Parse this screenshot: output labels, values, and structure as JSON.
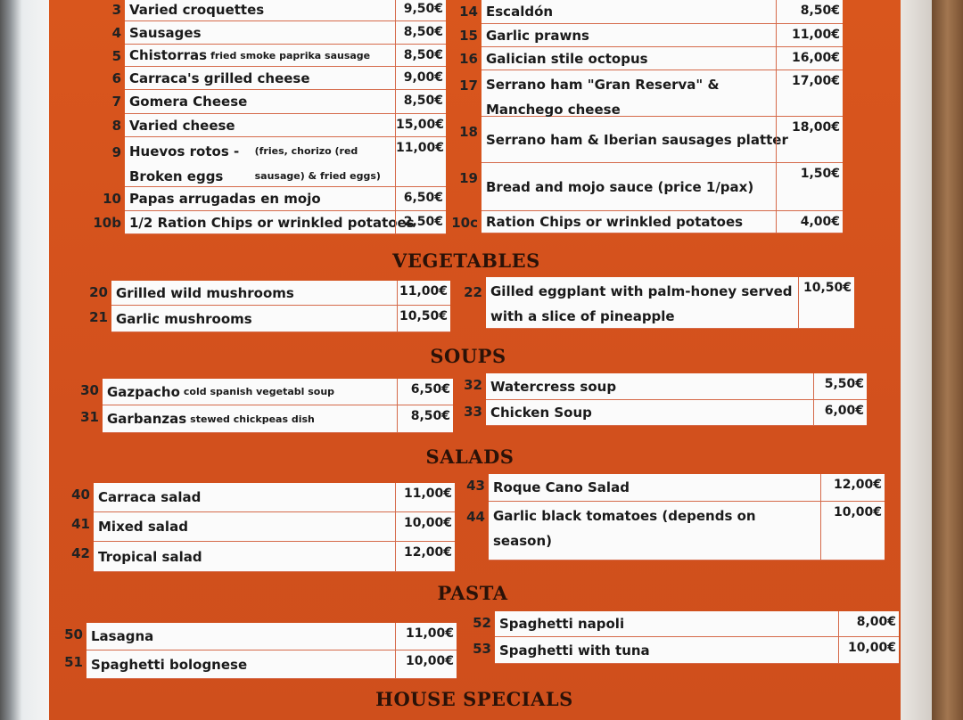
{
  "sections": [
    {
      "title": "",
      "left": [
        {
          "num": "3",
          "name": "Varied croquettes",
          "price": "9,50€"
        },
        {
          "num": "4",
          "name": "Sausages",
          "price": "8,50€"
        },
        {
          "num": "5",
          "name": "Chistorras",
          "note": "fried smoke paprika sausage",
          "price": "8,50€"
        },
        {
          "num": "6",
          "name": "Carraca's grilled cheese",
          "price": "9,00€"
        },
        {
          "num": "7",
          "name": "Gomera Cheese",
          "price": "8,50€"
        },
        {
          "num": "8",
          "name": "Varied cheese",
          "price": "15,00€"
        },
        {
          "num": "9",
          "name": "Huevos rotos - Broken eggs",
          "note": "(fries, chorizo (red sausage) & fried eggs)",
          "price": "11,00€"
        },
        {
          "num": "10",
          "name": "Papas arrugadas en mojo",
          "price": "6,50€"
        },
        {
          "num": "10b",
          "name": "1/2 Ration Chips or wrinkled potatoes",
          "price": "2,50€"
        }
      ],
      "right": [
        {
          "num": "14",
          "name": "Escaldón",
          "price": "8,50€"
        },
        {
          "num": "15",
          "name": "Garlic prawns",
          "price": "11,00€"
        },
        {
          "num": "16",
          "name": "Galician stile octopus",
          "price": "16,00€"
        },
        {
          "num": "17",
          "name": "Serrano ham \"Gran Reserva\" & Manchego cheese",
          "price": "17,00€"
        },
        {
          "num": "18",
          "name": "Serrano ham  & Iberian sausages platter",
          "price": "18,00€"
        },
        {
          "num": "19",
          "name": "Bread and mojo sauce (price 1/pax)",
          "price": "1,50€"
        },
        {
          "num": "10c",
          "name": "Ration Chips or wrinkled potatoes",
          "price": "4,00€"
        }
      ]
    },
    {
      "title": "VEGETABLES",
      "left": [
        {
          "num": "20",
          "name": "Grilled wild mushrooms",
          "price": "11,00€"
        },
        {
          "num": "21",
          "name": "Garlic mushrooms",
          "price": "10,50€"
        }
      ],
      "right": [
        {
          "num": "22",
          "name": "Gilled eggplant with palm-honey served with a slice of pineapple",
          "price": "10,50€"
        }
      ]
    },
    {
      "title": "SOUPS",
      "left": [
        {
          "num": "30",
          "name": "Gazpacho",
          "note": "cold spanish vegetabl soup",
          "price": "6,50€"
        },
        {
          "num": "31",
          "name": "Garbanzas",
          "note": "stewed chickpeas dish",
          "price": "8,50€"
        }
      ],
      "right": [
        {
          "num": "32",
          "name": "Watercress soup",
          "price": "5,50€"
        },
        {
          "num": "33",
          "name": "Chicken Soup",
          "price": "6,00€"
        }
      ]
    },
    {
      "title": "SALADS",
      "left": [
        {
          "num": "40",
          "name": "Carraca salad",
          "price": "11,00€"
        },
        {
          "num": "41",
          "name": "Mixed salad",
          "price": "10,00€"
        },
        {
          "num": "42",
          "name": "Tropical salad",
          "price": "12,00€"
        }
      ],
      "right": [
        {
          "num": "43",
          "name": "Roque Cano Salad",
          "price": "12,00€"
        },
        {
          "num": "44",
          "name": "Garlic black tomatoes (depends on season)",
          "price": "10,00€"
        }
      ]
    },
    {
      "title": "PASTA",
      "left": [
        {
          "num": "50",
          "name": "Lasagna",
          "price": "11,00€"
        },
        {
          "num": "51",
          "name": "Spaghetti bolognese",
          "price": "10,00€"
        }
      ],
      "right": [
        {
          "num": "52",
          "name": "Spaghetti napoli",
          "price": "8,00€"
        },
        {
          "num": "53",
          "name": "Spaghetti with tuna",
          "price": "10,00€"
        }
      ]
    },
    {
      "title": "HOUSE SPECIALS",
      "left": [],
      "right": []
    }
  ]
}
